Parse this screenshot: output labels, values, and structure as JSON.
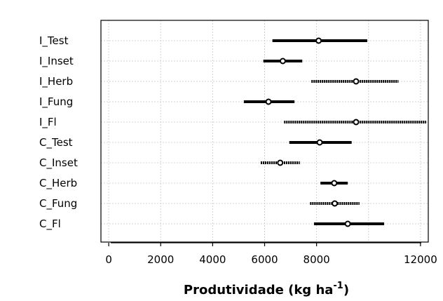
{
  "chart_data": {
    "type": "interval",
    "title": "",
    "xlabel": "Produtividade (kg ha",
    "xlabel_superscript": "-1",
    "xlabel_close": ")",
    "ylabel": "",
    "xlim": [
      -300,
      12300
    ],
    "xticks": [
      0,
      2000,
      4000,
      6000,
      8000,
      12000
    ],
    "grid": true,
    "categories": [
      "I_Test",
      "I_Inset",
      "I_Herb",
      "I_Fung",
      "I_Fl",
      "C_Test",
      "C_Inset",
      "C_Herb",
      "C_Fung",
      "C_Fl"
    ],
    "intervals": [
      {
        "label": "I_Test",
        "low": 6300,
        "estimate": 8080,
        "high": 9950,
        "line_style": "solid"
      },
      {
        "label": "I_Inset",
        "low": 5950,
        "estimate": 6700,
        "high": 7450,
        "line_style": "solid"
      },
      {
        "label": "I_Herb",
        "low": 7800,
        "estimate": 9520,
        "high": 11150,
        "line_style": "dotted"
      },
      {
        "label": "I_Fung",
        "low": 5200,
        "estimate": 6150,
        "high": 7150,
        "line_style": "solid"
      },
      {
        "label": "I_Fl",
        "low": 6750,
        "estimate": 9520,
        "high": 12300,
        "line_style": "dotted"
      },
      {
        "label": "C_Test",
        "low": 6950,
        "estimate": 8120,
        "high": 9350,
        "line_style": "solid"
      },
      {
        "label": "C_Inset",
        "low": 5850,
        "estimate": 6600,
        "high": 7350,
        "line_style": "dotted"
      },
      {
        "label": "C_Herb",
        "low": 8150,
        "estimate": 8680,
        "high": 9200,
        "line_style": "solid"
      },
      {
        "label": "C_Fung",
        "low": 7750,
        "estimate": 8700,
        "high": 9650,
        "line_style": "dotted"
      },
      {
        "label": "C_Fl",
        "low": 7900,
        "estimate": 9200,
        "high": 10600,
        "line_style": "solid"
      }
    ],
    "colors": {
      "interval": "#000000",
      "grid": "#d3d3d3",
      "frame": "#000000"
    }
  }
}
